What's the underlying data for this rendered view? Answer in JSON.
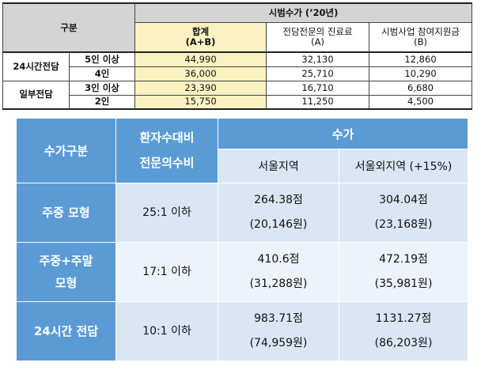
{
  "top_table": {
    "header": {
      "category": "구분",
      "fee_title": "시범수가 (’20년)",
      "total": "합계",
      "total_sub": "(A+B)",
      "col_a": "전담전문의 진료료",
      "col_a_sub": "(A)",
      "col_b": "시범사업 참여지원금",
      "col_b_sub": "(B)"
    },
    "groups": [
      {
        "name": "24시간전담",
        "rows": [
          {
            "sub": "5인 이상",
            "total": "44,990",
            "a": "32,130",
            "b": "12,860"
          },
          {
            "sub": "4인",
            "total": "36,000",
            "a": "25,710",
            "b": "10,290"
          }
        ]
      },
      {
        "name": "일부전담",
        "rows": [
          {
            "sub": "3인 이상",
            "total": "23,390",
            "a": "16,710",
            "b": "6,680"
          },
          {
            "sub": "2인",
            "total": "15,750",
            "a": "11,250",
            "b": "4,500"
          }
        ]
      }
    ]
  },
  "bottom_table": {
    "header": {
      "category": "수가구분",
      "ratio_line1": "환자수대비",
      "ratio_line2": "전문의수비",
      "fee": "수가",
      "seoul": "서울지역",
      "non_seoul": "서울외지역 (+15%)"
    },
    "rows": [
      {
        "label_line1": "주중 모형",
        "label_line2": "",
        "ratio": "25:1 이하",
        "seoul_pts": "264.38점",
        "seoul_won": "(20,146원)",
        "non_pts": "304.04점",
        "non_won": "(23,168원)"
      },
      {
        "label_line1": "주중+주말",
        "label_line2": "모형",
        "ratio": "17:1 이하",
        "seoul_pts": "410.6점",
        "seoul_won": "(31,288원)",
        "non_pts": "472.19점",
        "non_won": "(35,981원)"
      },
      {
        "label_line1": "24시간 전담",
        "label_line2": "",
        "ratio": "10:1 이하",
        "seoul_pts": "983.71점",
        "seoul_won": "(74,959원)",
        "non_pts": "1131.27점",
        "non_won": "(86,203원)"
      }
    ]
  }
}
